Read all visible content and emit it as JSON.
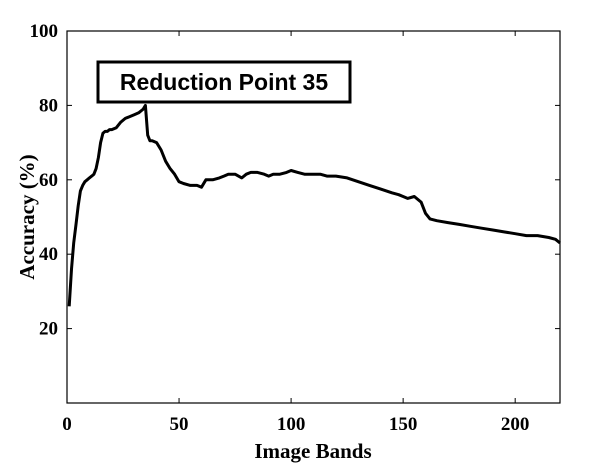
{
  "chart_data": {
    "type": "line",
    "xlabel": "Image Bands",
    "ylabel": "Accuracy (%)",
    "xlim": [
      0,
      220
    ],
    "ylim": [
      0,
      100
    ],
    "xticks": [
      0,
      50,
      100,
      150,
      200
    ],
    "yticks": [
      20,
      40,
      60,
      80,
      100
    ],
    "grid": false,
    "line_color": "#000000",
    "annotation": {
      "text": "Reduction Point 35",
      "x": 35,
      "y": 80
    },
    "series": [
      {
        "x": [
          1,
          2,
          3,
          4,
          5,
          6,
          7,
          8,
          9,
          10,
          11,
          12,
          13,
          14,
          15,
          16,
          17,
          18,
          19,
          20,
          22,
          24,
          26,
          28,
          30,
          32,
          33,
          34,
          35,
          36,
          37,
          38,
          40,
          42,
          44,
          46,
          48,
          50,
          52,
          55,
          58,
          60,
          62,
          65,
          68,
          70,
          72,
          75,
          78,
          80,
          82,
          85,
          88,
          90,
          92,
          95,
          98,
          100,
          103,
          106,
          110,
          113,
          116,
          120,
          125,
          130,
          135,
          140,
          145,
          148,
          150,
          152,
          155,
          158,
          160,
          162,
          165,
          170,
          175,
          180,
          185,
          190,
          195,
          200,
          205,
          210,
          215,
          218,
          220
        ],
        "y": [
          26,
          36,
          43,
          48,
          53,
          57,
          58.5,
          59.5,
          60,
          60.5,
          61,
          61.5,
          63,
          66,
          70,
          72.5,
          73,
          73,
          73.5,
          73.5,
          74,
          75.5,
          76.5,
          77,
          77.5,
          78,
          78.5,
          79,
          80,
          72,
          70.5,
          70.5,
          70,
          68,
          65,
          63,
          61.5,
          59.5,
          59,
          58.5,
          58.5,
          58,
          60,
          60,
          60.5,
          61,
          61.5,
          61.5,
          60.5,
          61.5,
          62,
          62,
          61.5,
          61,
          61.5,
          61.5,
          62,
          62.5,
          62,
          61.5,
          61.5,
          61.5,
          61,
          61,
          60.5,
          59.5,
          58.5,
          57.5,
          56.5,
          56,
          55.5,
          55,
          55.5,
          54,
          51,
          49.5,
          49,
          48.5,
          48,
          47.5,
          47,
          46.5,
          46,
          45.5,
          45,
          45,
          44.5,
          44,
          43
        ]
      }
    ]
  }
}
